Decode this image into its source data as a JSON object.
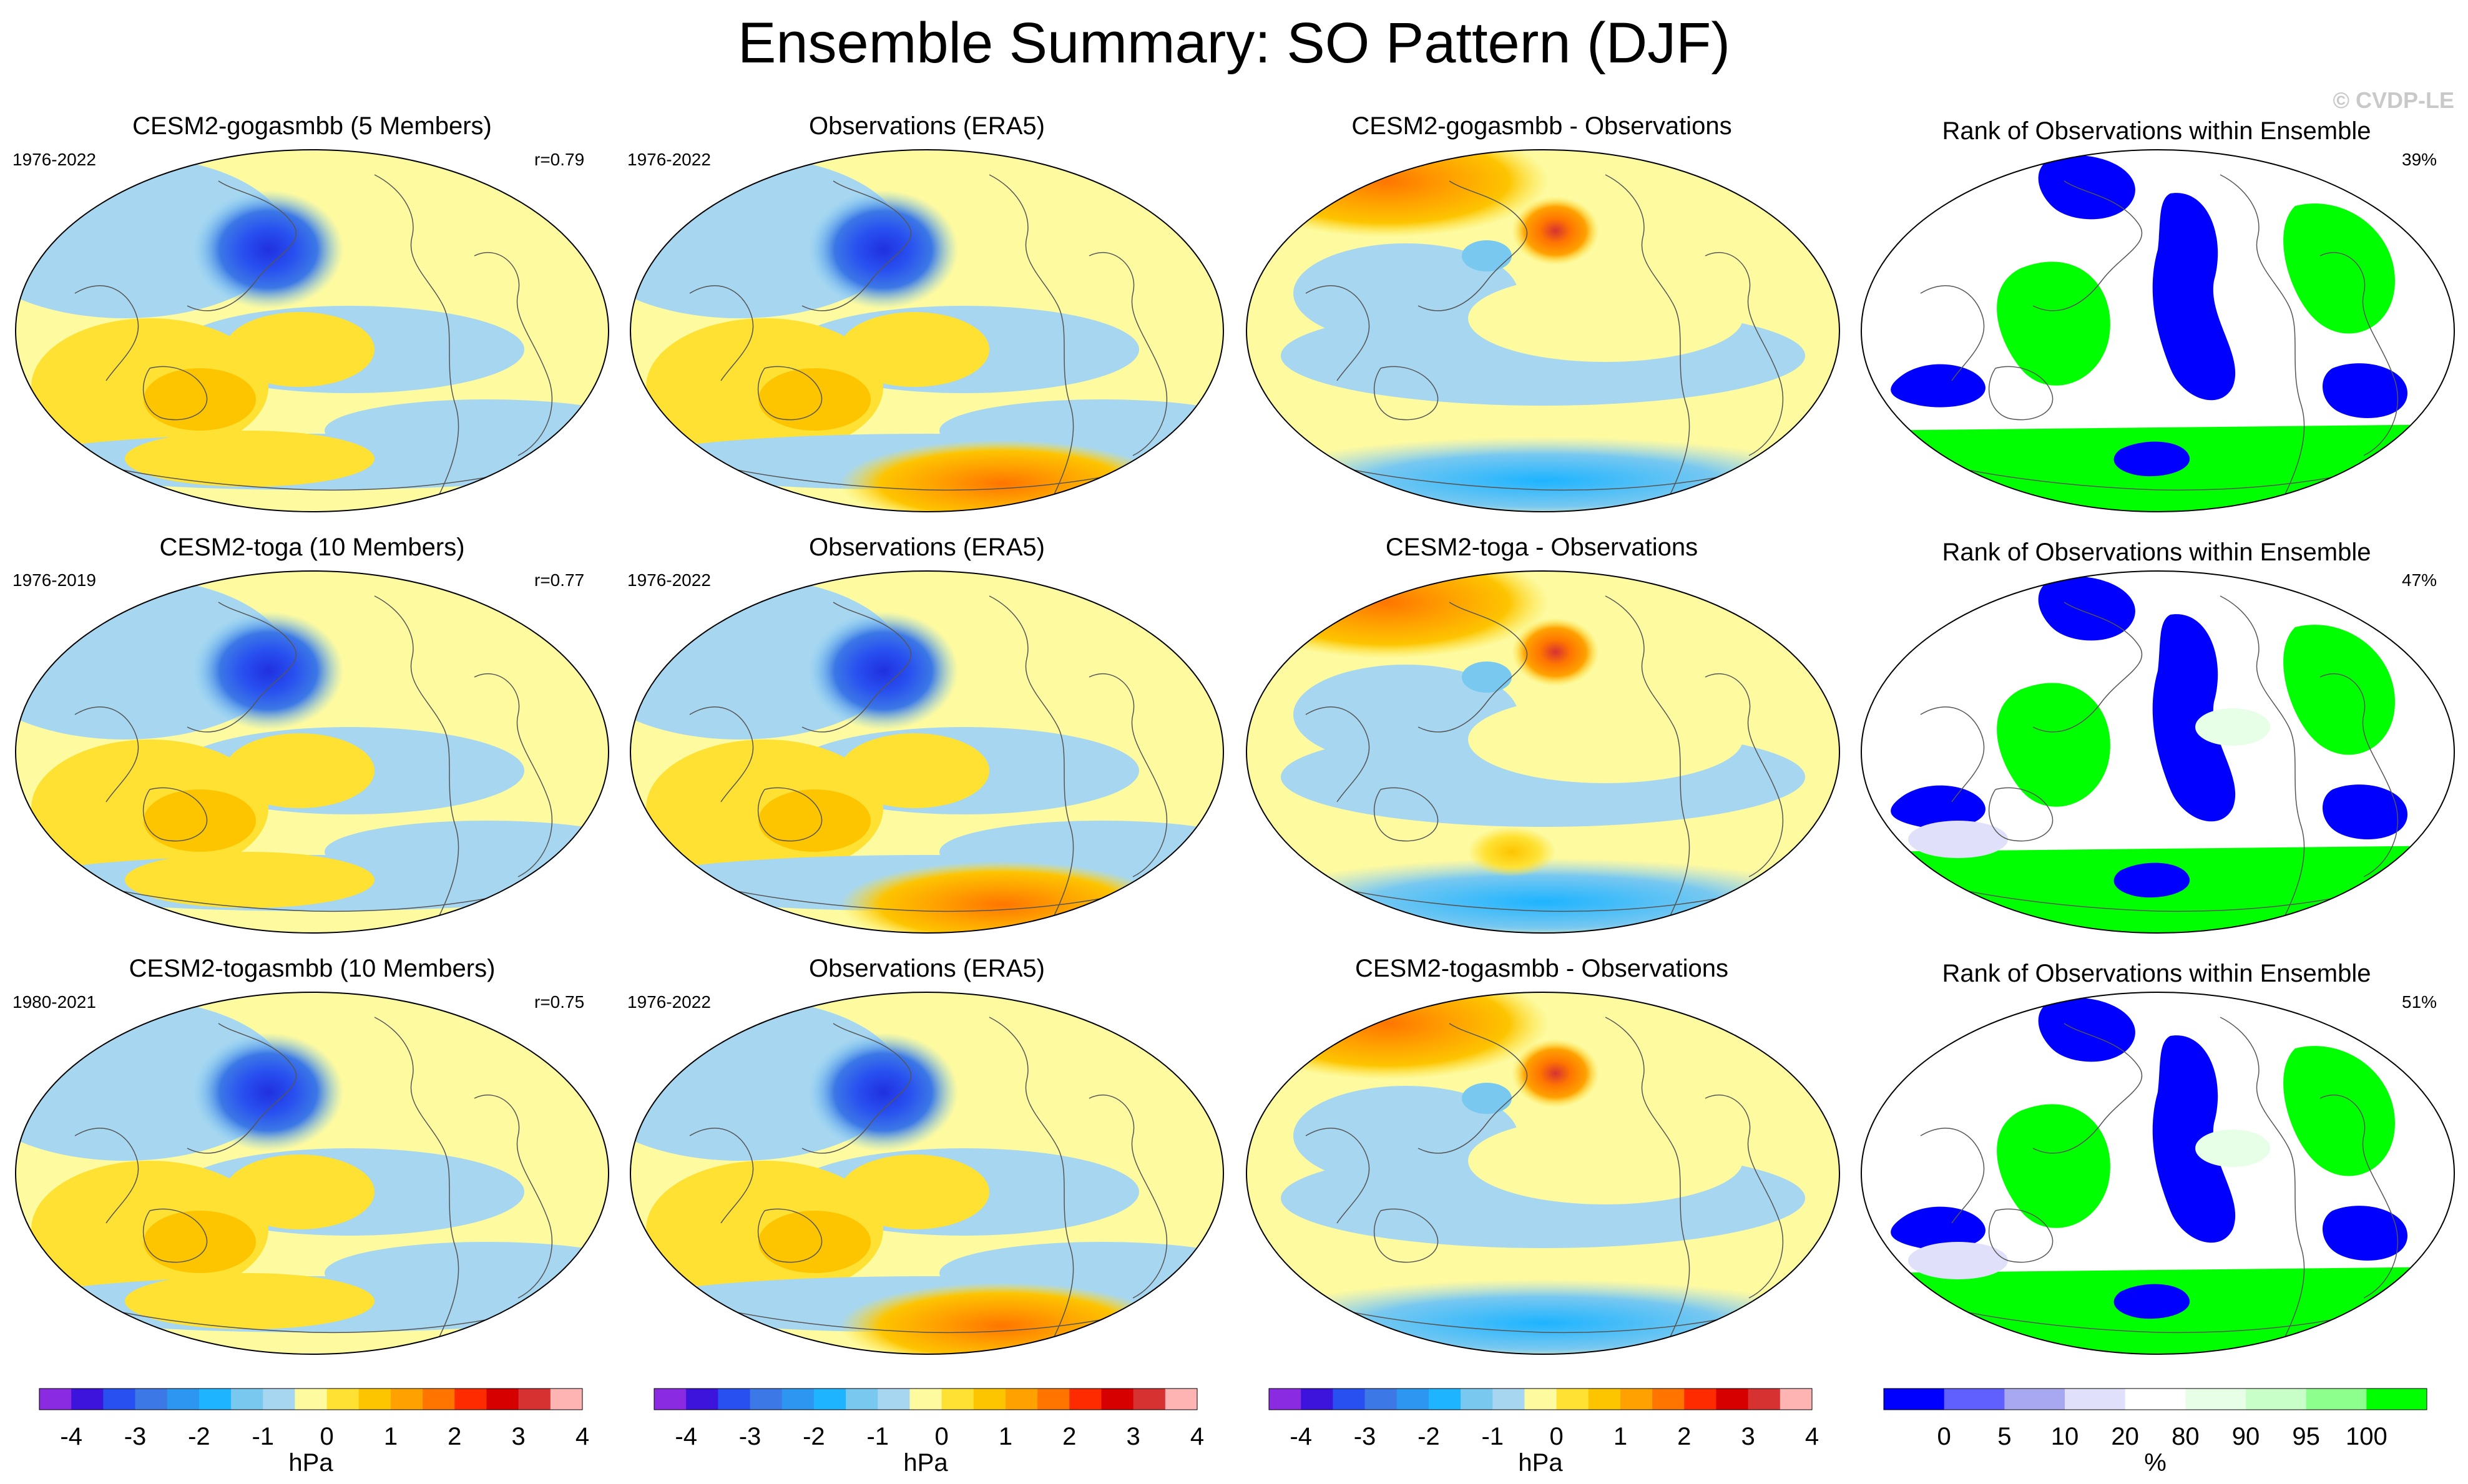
{
  "title": "Ensemble Summary: SO Pattern (DJF)",
  "copyright": "© CVDP-LE",
  "colors": {
    "hpa_scale": [
      "#8a2be2",
      "#3c14dc",
      "#2850f0",
      "#3c78e6",
      "#2d96f0",
      "#1eb4ff",
      "#78c8f0",
      "#a6d6f0",
      "#fdfaa0",
      "#fee132",
      "#fdc400",
      "#ffa100",
      "#ff7500",
      "#ff2b00",
      "#d70000",
      "#d73232",
      "#ffb4b4"
    ],
    "rank_scale": [
      "#0000ff",
      "#6060ff",
      "#a8a8f0",
      "#e0e0fa",
      "#ffffff",
      "#e6ffe6",
      "#c8ffc8",
      "#8cff8c",
      "#00ff00"
    ]
  },
  "rows": [
    {
      "model": {
        "title": "CESM2-gogasmbb (5 Members)",
        "years": "1976-2022",
        "corr": "r=0.79"
      },
      "obs": {
        "title": "Observations (ERA5)",
        "years": "1976-2022"
      },
      "diff": {
        "title": "CESM2-gogasmbb - Observations"
      },
      "rank": {
        "title": "Rank of Observations within Ensemble",
        "pct": "39%"
      }
    },
    {
      "model": {
        "title": "CESM2-toga (10 Members)",
        "years": "1976-2019",
        "corr": "r=0.77"
      },
      "obs": {
        "title": "Observations (ERA5)",
        "years": "1976-2022"
      },
      "diff": {
        "title": "CESM2-toga - Observations"
      },
      "rank": {
        "title": "Rank of Observations within Ensemble",
        "pct": "47%"
      }
    },
    {
      "model": {
        "title": "CESM2-togasmbb (10 Members)",
        "years": "1980-2021",
        "corr": "r=0.75"
      },
      "obs": {
        "title": "Observations (ERA5)",
        "years": "1976-2022"
      },
      "diff": {
        "title": "CESM2-togasmbb - Observations"
      },
      "rank": {
        "title": "Rank of Observations within Ensemble",
        "pct": "51%"
      }
    }
  ],
  "colorbars": {
    "hpa": {
      "unit": "hPa",
      "ticks": [
        "-4",
        "-3",
        "-2",
        "-1",
        "0",
        "1",
        "2",
        "3",
        "4"
      ]
    },
    "rank": {
      "unit": "%",
      "ticks": [
        "0",
        "5",
        "10",
        "20",
        "80",
        "90",
        "95",
        "100"
      ]
    }
  },
  "chart_data": {
    "type": "heatmap",
    "title": "Ensemble Summary: SO Pattern (DJF)",
    "units": "hPa",
    "contour_levels": [
      -4,
      -3.5,
      -3,
      -2.5,
      -2,
      -1.5,
      -1,
      -0.5,
      0,
      0.5,
      1,
      1.5,
      2,
      2.5,
      3,
      3.5,
      4
    ],
    "rank_levels_percent": [
      0,
      5,
      10,
      20,
      80,
      90,
      95,
      100
    ],
    "panels": [
      {
        "row": 1,
        "col": 1,
        "name": "CESM2-gogasmbb (5 Members)",
        "years": "1976-2022",
        "pattern_correlation": 0.79
      },
      {
        "row": 1,
        "col": 2,
        "name": "Observations (ERA5)",
        "years": "1976-2022"
      },
      {
        "row": 1,
        "col": 3,
        "name": "CESM2-gogasmbb - Observations"
      },
      {
        "row": 1,
        "col": 4,
        "name": "Rank of Observations within Ensemble",
        "percent": 39
      },
      {
        "row": 2,
        "col": 1,
        "name": "CESM2-toga (10 Members)",
        "years": "1976-2019",
        "pattern_correlation": 0.77
      },
      {
        "row": 2,
        "col": 2,
        "name": "Observations (ERA5)",
        "years": "1976-2022"
      },
      {
        "row": 2,
        "col": 3,
        "name": "CESM2-toga - Observations"
      },
      {
        "row": 2,
        "col": 4,
        "name": "Rank of Observations within Ensemble",
        "percent": 47
      },
      {
        "row": 3,
        "col": 1,
        "name": "CESM2-togasmbb (10 Members)",
        "years": "1980-2021",
        "pattern_correlation": 0.75
      },
      {
        "row": 3,
        "col": 2,
        "name": "Observations (ERA5)",
        "years": "1976-2022"
      },
      {
        "row": 3,
        "col": 3,
        "name": "CESM2-togasmbb - Observations"
      },
      {
        "row": 3,
        "col": 4,
        "name": "Rank of Observations within Ensemble",
        "percent": 51
      }
    ]
  }
}
